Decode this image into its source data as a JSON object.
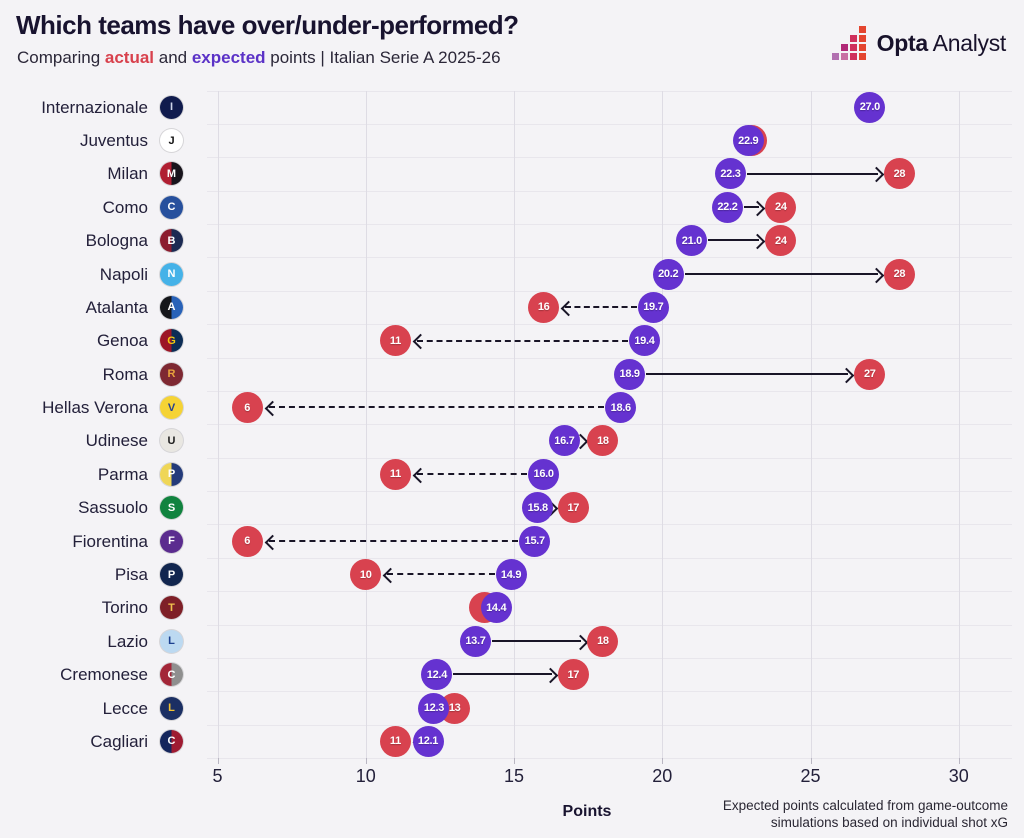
{
  "header": {
    "title": "Which teams have over/under-performed?",
    "subtitle": {
      "prefix": "Comparing ",
      "actual_word": "actual",
      "and_word": " and ",
      "expected_word": "expected",
      "suffix": " points | Italian Serie A 2025-26"
    },
    "brand": {
      "bold": "Opta",
      "regular": "Analyst"
    }
  },
  "colors": {
    "actual": "#d8424f",
    "expected": "#6532d0",
    "arrow": "#191527",
    "background": "#f4f3f6",
    "grid_vertical": "#dedce4",
    "grid_horizontal": "#e8e6ec",
    "title_text": "#18132f",
    "brand_mark": [
      "#8e2a8a",
      "#b02877",
      "#cf2f5c",
      "#e4452f"
    ]
  },
  "footnote": {
    "line1": "Expected points calculated from game-outcome",
    "line2": "simulations based on individual shot xG"
  },
  "chart_data": {
    "type": "dumbbell",
    "title": "Which teams have over/under-performed?",
    "subtitle": "Comparing actual and expected points | Italian Serie A 2025-26",
    "xlabel": "Points",
    "axis": {
      "min": 5,
      "max": 30,
      "ticks": [
        5,
        10,
        15,
        20,
        25,
        30
      ]
    },
    "legend": {
      "actual_color": "#d8424f",
      "expected_color": "#6532d0"
    },
    "teams": [
      {
        "name": "Internazionale",
        "expected": 27.0,
        "expected_label": "27.0",
        "actual": null,
        "actual_label": null,
        "arrow": "none",
        "logo": {
          "bg": "#101b4d",
          "bg2": "#101b4d",
          "fg": "#cfd6ea",
          "text": "I"
        }
      },
      {
        "name": "Juventus",
        "expected": 22.9,
        "expected_label": "22.9",
        "actual": 23,
        "actual_label": null,
        "arrow": "none",
        "logo": {
          "bg": "#ffffff",
          "bg2": "#ffffff",
          "fg": "#111111",
          "text": "J"
        }
      },
      {
        "name": "Milan",
        "expected": 22.3,
        "expected_label": "22.3",
        "actual": 28,
        "actual_label": "28",
        "arrow": "solid-right",
        "logo": {
          "bg": "#b01e32",
          "bg2": "#18141c",
          "fg": "#ffffff",
          "text": "M"
        }
      },
      {
        "name": "Como",
        "expected": 22.2,
        "expected_label": "22.2",
        "actual": 24,
        "actual_label": "24",
        "arrow": "solid-right",
        "logo": {
          "bg": "#27509d",
          "bg2": "#27509d",
          "fg": "#ffffff",
          "text": "C"
        }
      },
      {
        "name": "Bologna",
        "expected": 21.0,
        "expected_label": "21.0",
        "actual": 24,
        "actual_label": "24",
        "arrow": "solid-right",
        "logo": {
          "bg": "#8c1c2e",
          "bg2": "#1c2a52",
          "fg": "#ffffff",
          "text": "B"
        }
      },
      {
        "name": "Napoli",
        "expected": 20.2,
        "expected_label": "20.2",
        "actual": 28,
        "actual_label": "28",
        "arrow": "solid-right",
        "logo": {
          "bg": "#45b2e8",
          "bg2": "#45b2e8",
          "fg": "#ffffff",
          "text": "N"
        }
      },
      {
        "name": "Atalanta",
        "expected": 19.7,
        "expected_label": "19.7",
        "actual": 16,
        "actual_label": "16",
        "arrow": "dashed-left",
        "logo": {
          "bg": "#15161a",
          "bg2": "#2862b8",
          "fg": "#ffffff",
          "text": "A"
        }
      },
      {
        "name": "Genoa",
        "expected": 19.4,
        "expected_label": "19.4",
        "actual": 11,
        "actual_label": "11",
        "arrow": "dashed-left",
        "logo": {
          "bg": "#9c1526",
          "bg2": "#0c2c55",
          "fg": "#f3c712",
          "text": "G"
        }
      },
      {
        "name": "Roma",
        "expected": 18.9,
        "expected_label": "18.9",
        "actual": 27,
        "actual_label": "27",
        "arrow": "solid-right",
        "logo": {
          "bg": "#7e2832",
          "bg2": "#7e2832",
          "fg": "#e8a33d",
          "text": "R"
        }
      },
      {
        "name": "Hellas Verona",
        "expected": 18.6,
        "expected_label": "18.6",
        "actual": 6,
        "actual_label": "6",
        "arrow": "dashed-left",
        "logo": {
          "bg": "#f5d335",
          "bg2": "#f5d335",
          "fg": "#27408f",
          "text": "V"
        }
      },
      {
        "name": "Udinese",
        "expected": 16.7,
        "expected_label": "16.7",
        "actual": 18,
        "actual_label": "18",
        "arrow": "solid-right",
        "logo": {
          "bg": "#e9e7e2",
          "bg2": "#e9e7e2",
          "fg": "#1c1c1c",
          "text": "U"
        }
      },
      {
        "name": "Parma",
        "expected": 16.0,
        "expected_label": "16.0",
        "actual": 11,
        "actual_label": "11",
        "arrow": "dashed-left",
        "logo": {
          "bg": "#efd657",
          "bg2": "#243b7a",
          "fg": "#ffffff",
          "text": "P"
        }
      },
      {
        "name": "Sassuolo",
        "expected": 15.8,
        "expected_label": "15.8",
        "actual": 17,
        "actual_label": "17",
        "arrow": "solid-right",
        "logo": {
          "bg": "#11833f",
          "bg2": "#11833f",
          "fg": "#ffffff",
          "text": "S"
        }
      },
      {
        "name": "Fiorentina",
        "expected": 15.7,
        "expected_label": "15.7",
        "actual": 6,
        "actual_label": "6",
        "arrow": "dashed-left",
        "logo": {
          "bg": "#5b2c8f",
          "bg2": "#5b2c8f",
          "fg": "#ffffff",
          "text": "F"
        }
      },
      {
        "name": "Pisa",
        "expected": 14.9,
        "expected_label": "14.9",
        "actual": 10,
        "actual_label": "10",
        "arrow": "dashed-left",
        "logo": {
          "bg": "#12264f",
          "bg2": "#12264f",
          "fg": "#ffffff",
          "text": "P"
        }
      },
      {
        "name": "Torino",
        "expected": 14.4,
        "expected_label": "14.4",
        "actual": 14,
        "actual_label": null,
        "arrow": "none",
        "logo": {
          "bg": "#7e1f27",
          "bg2": "#7e1f27",
          "fg": "#f0c14d",
          "text": "T"
        }
      },
      {
        "name": "Lazio",
        "expected": 13.7,
        "expected_label": "13.7",
        "actual": 18,
        "actual_label": "18",
        "arrow": "solid-right",
        "logo": {
          "bg": "#bcd9f1",
          "bg2": "#bcd9f1",
          "fg": "#1b3f8f",
          "text": "L"
        }
      },
      {
        "name": "Cremonese",
        "expected": 12.4,
        "expected_label": "12.4",
        "actual": 17,
        "actual_label": "17",
        "arrow": "solid-right",
        "logo": {
          "bg": "#a32638",
          "bg2": "#8f8f8f",
          "fg": "#ffffff",
          "text": "C"
        }
      },
      {
        "name": "Lecce",
        "expected": 12.3,
        "expected_label": "12.3",
        "actual": 13,
        "actual_label": "13",
        "arrow": "none",
        "logo": {
          "bg": "#1b2f63",
          "bg2": "#1b2f63",
          "fg": "#f2c230",
          "text": "L"
        }
      },
      {
        "name": "Cagliari",
        "expected": 12.1,
        "expected_label": "12.1",
        "actual": 11,
        "actual_label": "11",
        "arrow": "dashed-left",
        "logo": {
          "bg": "#15265c",
          "bg2": "#9e1b32",
          "fg": "#ffffff",
          "text": "C"
        }
      }
    ]
  }
}
